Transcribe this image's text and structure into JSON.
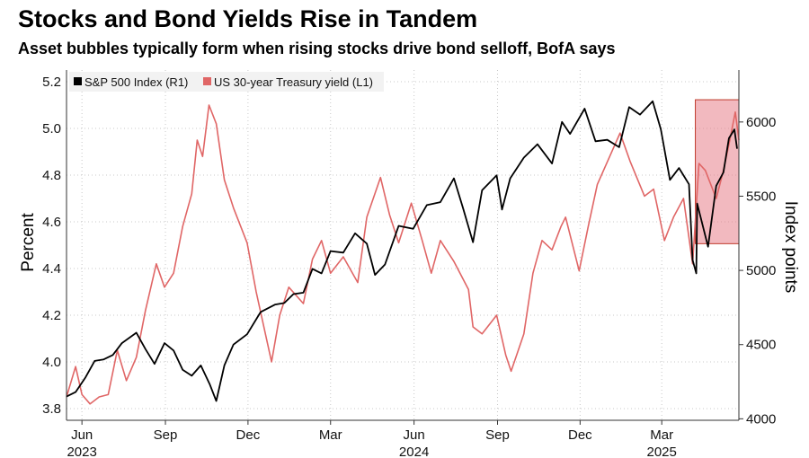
{
  "title": "Stocks and Bond Yields Rise in Tandem",
  "subtitle": "Asset bubbles typically form when rising stocks drive bond selloff, BofA says",
  "chart_data": {
    "type": "line",
    "ylabel_left": "Percent",
    "ylabel_right": "Index points",
    "ylim_left": [
      3.75,
      5.25
    ],
    "ylim_right": [
      3990,
      6350
    ],
    "yticks_left": [
      "3.8",
      "4.0",
      "4.2",
      "4.4",
      "4.6",
      "4.8",
      "5.0",
      "5.2"
    ],
    "yticks_right": [
      "4000",
      "4500",
      "5000",
      "5500",
      "6000"
    ],
    "x_range": [
      "2023-05-15",
      "2025-05-25"
    ],
    "xticks": [
      {
        "date": "2023-06-01",
        "label": "Jun",
        "year": "2023"
      },
      {
        "date": "2023-09-01",
        "label": "Sep",
        "year": ""
      },
      {
        "date": "2023-12-01",
        "label": "Dec",
        "year": ""
      },
      {
        "date": "2024-03-01",
        "label": "Mar",
        "year": ""
      },
      {
        "date": "2024-06-01",
        "label": "Jun",
        "year": "2024"
      },
      {
        "date": "2024-09-01",
        "label": "Sep",
        "year": ""
      },
      {
        "date": "2024-12-01",
        "label": "Dec",
        "year": ""
      },
      {
        "date": "2025-03-01",
        "label": "Mar",
        "year": "2025"
      }
    ],
    "grid": true,
    "legend_position": "top-left",
    "highlight": {
      "x_start": "2025-04-07",
      "x_end": "2025-05-25",
      "y_low": 5180,
      "y_high": 6150,
      "color": "#e8808a"
    },
    "series": [
      {
        "name": "S&P 500 Index (R1)",
        "axis": "right",
        "color": "#000000",
        "points": [
          [
            "2023-05-15",
            4150
          ],
          [
            "2023-05-25",
            4180
          ],
          [
            "2023-06-05",
            4280
          ],
          [
            "2023-06-15",
            4390
          ],
          [
            "2023-06-25",
            4400
          ],
          [
            "2023-07-05",
            4430
          ],
          [
            "2023-07-15",
            4510
          ],
          [
            "2023-07-31",
            4580
          ],
          [
            "2023-08-10",
            4470
          ],
          [
            "2023-08-20",
            4370
          ],
          [
            "2023-08-31",
            4510
          ],
          [
            "2023-09-10",
            4460
          ],
          [
            "2023-09-20",
            4330
          ],
          [
            "2023-09-30",
            4290
          ],
          [
            "2023-10-10",
            4360
          ],
          [
            "2023-10-20",
            4230
          ],
          [
            "2023-10-27",
            4120
          ],
          [
            "2023-11-05",
            4360
          ],
          [
            "2023-11-15",
            4500
          ],
          [
            "2023-11-30",
            4570
          ],
          [
            "2023-12-15",
            4720
          ],
          [
            "2023-12-31",
            4770
          ],
          [
            "2024-01-10",
            4780
          ],
          [
            "2024-01-20",
            4840
          ],
          [
            "2024-01-31",
            4850
          ],
          [
            "2024-02-10",
            5010
          ],
          [
            "2024-02-20",
            4980
          ],
          [
            "2024-03-01",
            5130
          ],
          [
            "2024-03-15",
            5120
          ],
          [
            "2024-03-28",
            5250
          ],
          [
            "2024-04-10",
            5180
          ],
          [
            "2024-04-19",
            4970
          ],
          [
            "2024-04-30",
            5040
          ],
          [
            "2024-05-15",
            5300
          ],
          [
            "2024-05-31",
            5280
          ],
          [
            "2024-06-15",
            5440
          ],
          [
            "2024-06-30",
            5460
          ],
          [
            "2024-07-15",
            5620
          ],
          [
            "2024-07-25",
            5420
          ],
          [
            "2024-08-05",
            5190
          ],
          [
            "2024-08-15",
            5540
          ],
          [
            "2024-08-31",
            5640
          ],
          [
            "2024-09-06",
            5410
          ],
          [
            "2024-09-15",
            5620
          ],
          [
            "2024-09-30",
            5760
          ],
          [
            "2024-10-15",
            5850
          ],
          [
            "2024-10-31",
            5720
          ],
          [
            "2024-11-11",
            6000
          ],
          [
            "2024-11-20",
            5920
          ],
          [
            "2024-12-06",
            6090
          ],
          [
            "2024-12-18",
            5870
          ],
          [
            "2024-12-31",
            5880
          ],
          [
            "2025-01-13",
            5830
          ],
          [
            "2025-01-24",
            6100
          ],
          [
            "2025-02-05",
            6050
          ],
          [
            "2025-02-19",
            6140
          ],
          [
            "2025-02-28",
            5950
          ],
          [
            "2025-03-10",
            5610
          ],
          [
            "2025-03-20",
            5690
          ],
          [
            "2025-03-31",
            5580
          ],
          [
            "2025-04-04",
            5070
          ],
          [
            "2025-04-08",
            4980
          ],
          [
            "2025-04-09",
            5450
          ],
          [
            "2025-04-21",
            5160
          ],
          [
            "2025-04-30",
            5570
          ],
          [
            "2025-05-08",
            5660
          ],
          [
            "2025-05-14",
            5890
          ],
          [
            "2025-05-20",
            5950
          ],
          [
            "2025-05-23",
            5820
          ]
        ]
      },
      {
        "name": "US 30-year Treasury yield (L1)",
        "axis": "left",
        "color": "#e06666",
        "points": [
          [
            "2023-05-15",
            3.85
          ],
          [
            "2023-05-25",
            3.98
          ],
          [
            "2023-06-01",
            3.86
          ],
          [
            "2023-06-10",
            3.82
          ],
          [
            "2023-06-20",
            3.85
          ],
          [
            "2023-06-30",
            3.86
          ],
          [
            "2023-07-10",
            4.05
          ],
          [
            "2023-07-20",
            3.92
          ],
          [
            "2023-07-31",
            4.02
          ],
          [
            "2023-08-10",
            4.22
          ],
          [
            "2023-08-22",
            4.42
          ],
          [
            "2023-08-31",
            4.32
          ],
          [
            "2023-09-10",
            4.38
          ],
          [
            "2023-09-20",
            4.58
          ],
          [
            "2023-09-30",
            4.72
          ],
          [
            "2023-10-06",
            4.95
          ],
          [
            "2023-10-12",
            4.88
          ],
          [
            "2023-10-19",
            5.1
          ],
          [
            "2023-10-27",
            5.02
          ],
          [
            "2023-11-05",
            4.78
          ],
          [
            "2023-11-15",
            4.66
          ],
          [
            "2023-11-30",
            4.51
          ],
          [
            "2023-12-10",
            4.3
          ],
          [
            "2023-12-27",
            4.0
          ],
          [
            "2024-01-05",
            4.2
          ],
          [
            "2024-01-15",
            4.32
          ],
          [
            "2024-01-31",
            4.25
          ],
          [
            "2024-02-10",
            4.44
          ],
          [
            "2024-02-20",
            4.52
          ],
          [
            "2024-03-01",
            4.38
          ],
          [
            "2024-03-15",
            4.45
          ],
          [
            "2024-03-31",
            4.34
          ],
          [
            "2024-04-10",
            4.62
          ],
          [
            "2024-04-25",
            4.79
          ],
          [
            "2024-05-05",
            4.63
          ],
          [
            "2024-05-15",
            4.51
          ],
          [
            "2024-05-29",
            4.68
          ],
          [
            "2024-06-10",
            4.52
          ],
          [
            "2024-06-20",
            4.38
          ],
          [
            "2024-06-30",
            4.52
          ],
          [
            "2024-07-15",
            4.43
          ],
          [
            "2024-07-31",
            4.31
          ],
          [
            "2024-08-05",
            4.15
          ],
          [
            "2024-08-15",
            4.12
          ],
          [
            "2024-08-31",
            4.2
          ],
          [
            "2024-09-10",
            4.03
          ],
          [
            "2024-09-16",
            3.96
          ],
          [
            "2024-09-30",
            4.12
          ],
          [
            "2024-10-10",
            4.38
          ],
          [
            "2024-10-20",
            4.52
          ],
          [
            "2024-10-31",
            4.48
          ],
          [
            "2024-11-10",
            4.58
          ],
          [
            "2024-11-15",
            4.62
          ],
          [
            "2024-11-30",
            4.39
          ],
          [
            "2024-12-10",
            4.58
          ],
          [
            "2024-12-20",
            4.76
          ],
          [
            "2025-01-14",
            4.98
          ],
          [
            "2025-01-25",
            4.86
          ],
          [
            "2025-02-10",
            4.71
          ],
          [
            "2025-02-20",
            4.74
          ],
          [
            "2025-03-04",
            4.52
          ],
          [
            "2025-03-14",
            4.62
          ],
          [
            "2025-03-25",
            4.7
          ],
          [
            "2025-04-04",
            4.42
          ],
          [
            "2025-04-11",
            4.85
          ],
          [
            "2025-04-18",
            4.82
          ],
          [
            "2025-04-30",
            4.7
          ],
          [
            "2025-05-08",
            4.82
          ],
          [
            "2025-05-15",
            4.95
          ],
          [
            "2025-05-21",
            5.07
          ],
          [
            "2025-05-25",
            4.95
          ]
        ]
      }
    ]
  }
}
